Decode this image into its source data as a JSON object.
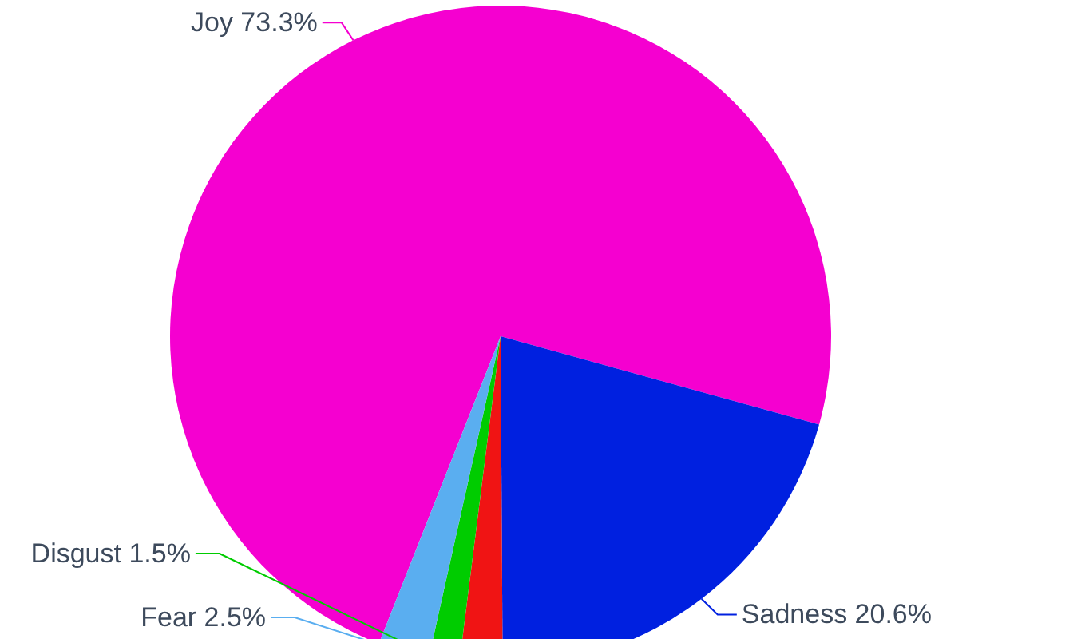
{
  "chart_data": {
    "type": "pie",
    "categories": [
      "Joy",
      "Sadness",
      null,
      "Disgust",
      "Fear"
    ],
    "values": [
      73.3,
      20.6,
      2.1,
      1.5,
      2.5
    ],
    "colors": [
      "#f500d0",
      "#0020e0",
      "#f01414",
      "#00cc00",
      "#5aaef0"
    ],
    "value_labels": [
      "73.3%",
      "20.6%",
      null,
      "1.5%",
      "2.5%"
    ]
  }
}
